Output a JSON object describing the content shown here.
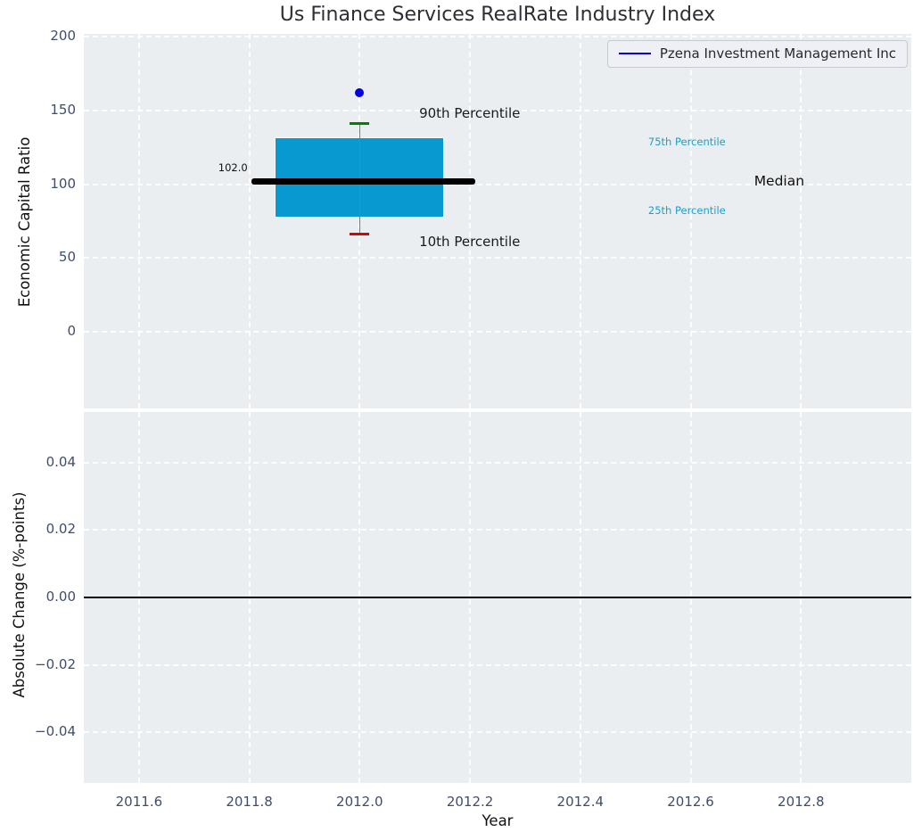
{
  "title": "Us Finance Services RealRate Industry Index",
  "legend": {
    "label": "Pzena Investment Management Inc",
    "line_color": "#0000dd",
    "position": "upper right"
  },
  "style": {
    "axes_bg": "#eaeef0",
    "grid_color": "#ffffff",
    "tick_color": "#3e4e6c",
    "title_color": "#2e2e35",
    "label_color": "#111111"
  },
  "chart_data": [
    {
      "type": "boxplot",
      "title": "Us Finance Services RealRate Industry Index",
      "ylabel": "Economic Capital Ratio",
      "xlim": [
        2011.5,
        2013.0
      ],
      "ylim": [
        -52,
        202
      ],
      "grid": true,
      "yticks": [
        {
          "v": 200,
          "label": "200"
        },
        {
          "v": 150,
          "label": "150"
        },
        {
          "v": 100,
          "label": "100"
        },
        {
          "v": 50,
          "label": "50"
        },
        {
          "v": 0,
          "label": "0"
        }
      ],
      "xticks": [
        {
          "v": 2011.6
        },
        {
          "v": 2011.8
        },
        {
          "v": 2012.0
        },
        {
          "v": 2012.2
        },
        {
          "v": 2012.4
        },
        {
          "v": 2012.6
        },
        {
          "v": 2012.8
        }
      ],
      "series": [
        {
          "name": "Pzena Investment Management Inc",
          "x": 2012.0,
          "value": 162
        }
      ],
      "box": {
        "x": 2012.0,
        "p10": 66,
        "q1": 78,
        "median": 102.0,
        "q3": 131,
        "p90": 141,
        "box_halfwidth": 0.152,
        "median_span": [
          2011.804,
          2012.21
        ]
      },
      "colors": {
        "box_fill": "#0899d1",
        "median": "#000000",
        "whisker": "#7a7a7a",
        "cap_p90": "#008000",
        "cap_p10": "#dd0000",
        "point": "#0000e0"
      },
      "annotations": [
        {
          "text": "90th Percentile",
          "x": 2012.108,
          "y": 147,
          "size": 15,
          "color": "#1a1a1a",
          "align": "left"
        },
        {
          "text": "10th Percentile",
          "x": 2012.108,
          "y": 60,
          "size": 15,
          "color": "#1a1a1a",
          "align": "left"
        },
        {
          "text": "75th Percentile",
          "x": 2012.523,
          "y": 128,
          "size": 11.5,
          "color": "#1b9fcc",
          "align": "left"
        },
        {
          "text": "25th Percentile",
          "x": 2012.523,
          "y": 81.5,
          "size": 11.5,
          "color": "#1b9fcc",
          "align": "left"
        },
        {
          "text": "Median",
          "x": 2012.715,
          "y": 101,
          "size": 15.5,
          "color": "#111111",
          "align": "left"
        },
        {
          "text": "102.0",
          "x": 2011.797,
          "y": 110.5,
          "size": 11.5,
          "color": "#111111",
          "align": "right"
        }
      ]
    },
    {
      "type": "line",
      "xlabel": "Year",
      "ylabel": "Absolute Change (%-points)",
      "xlim": [
        2011.5,
        2013.0
      ],
      "ylim": [
        -0.055,
        0.055
      ],
      "grid": true,
      "zero_line": 0.0,
      "yticks": [
        {
          "v": 0.04,
          "label": "0.04"
        },
        {
          "v": 0.02,
          "label": "0.02"
        },
        {
          "v": 0.0,
          "label": "0.00"
        },
        {
          "v": -0.02,
          "label": "−0.02"
        },
        {
          "v": -0.04,
          "label": "−0.04"
        }
      ],
      "xticks": [
        {
          "v": 2011.6,
          "label": "2011.6"
        },
        {
          "v": 2011.8,
          "label": "2011.8"
        },
        {
          "v": 2012.0,
          "label": "2012.0"
        },
        {
          "v": 2012.2,
          "label": "2012.2"
        },
        {
          "v": 2012.4,
          "label": "2012.4"
        },
        {
          "v": 2012.6,
          "label": "2012.6"
        },
        {
          "v": 2012.8,
          "label": "2012.8"
        }
      ],
      "series": []
    }
  ]
}
